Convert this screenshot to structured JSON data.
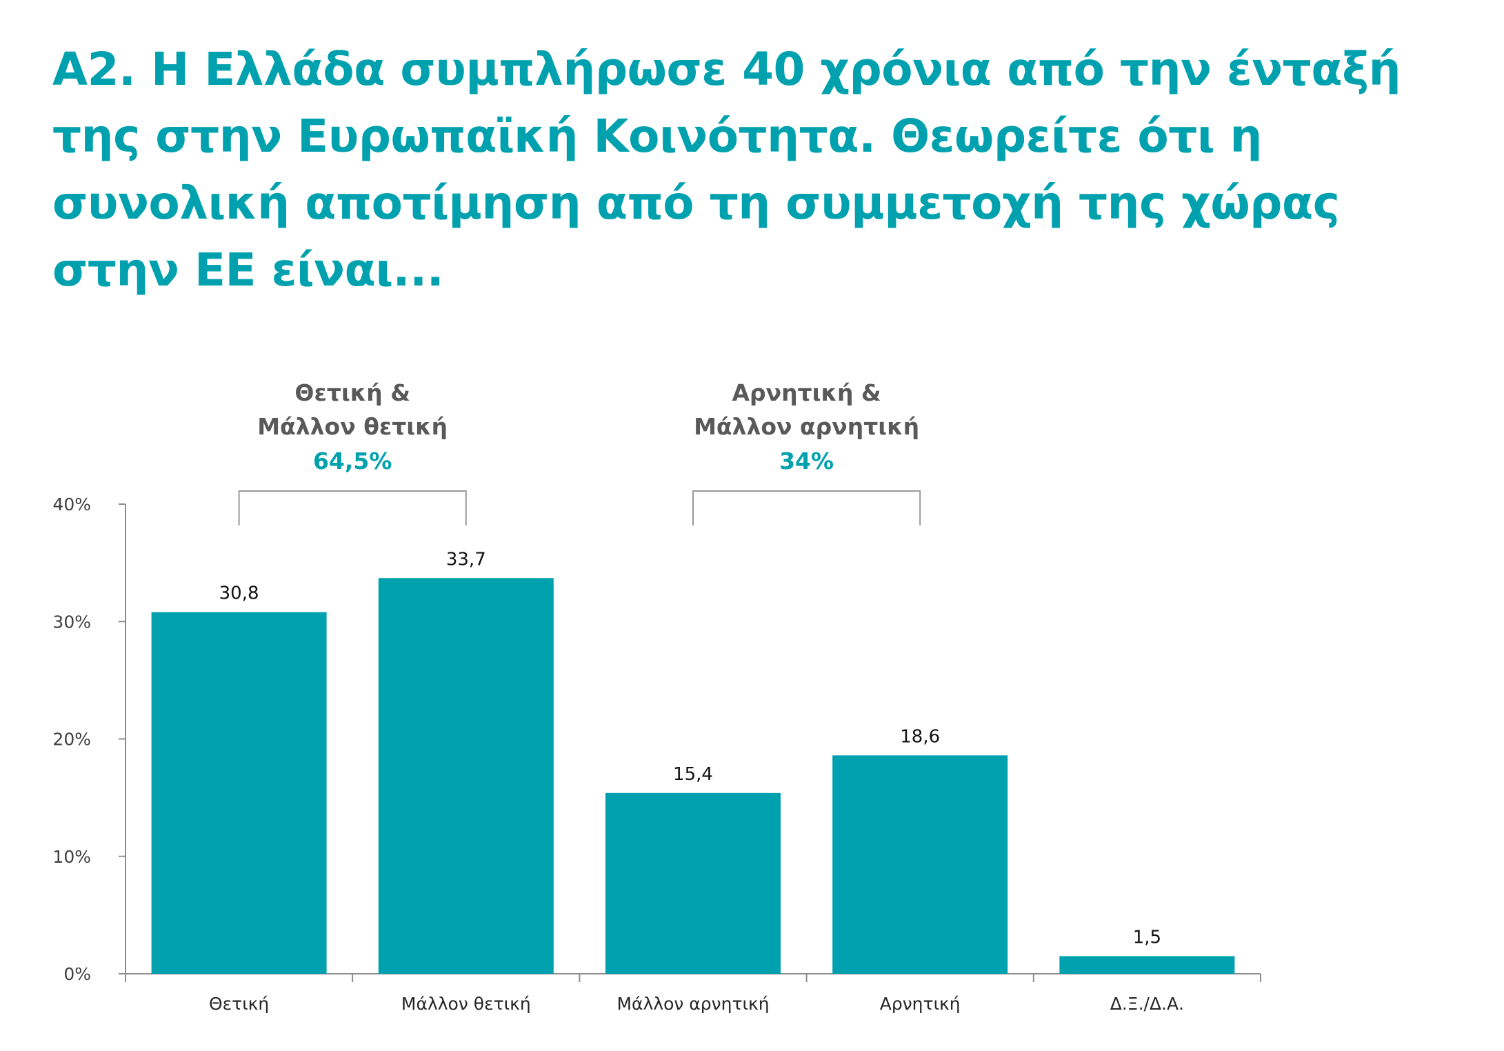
{
  "title": "Α2. Η Ελλάδα συμπλήρωσε 40 χρόνια από την ένταξή της στην Ευρωπαϊκή Κοινότητα. Θεωρείτε ότι η συνολική αποτίμηση από τη συμμετοχή της χώρας στην ΕΕ είναι...",
  "colors": {
    "accent": "#00a1ae",
    "group_title": "#595959",
    "axis": "#8c8c8c"
  },
  "chart_data": {
    "type": "bar",
    "title": "",
    "xlabel": "",
    "ylabel": "",
    "categories": [
      "Θετική",
      "Μάλλον θετική",
      "Μάλλον αρνητική",
      "Αρνητική",
      "Δ.Ξ./Δ.Α."
    ],
    "values": [
      30.8,
      33.7,
      15.4,
      18.6,
      1.5
    ],
    "value_labels": [
      "30,8",
      "33,7",
      "15,4",
      "18,6",
      "1,5"
    ],
    "ylim": [
      0,
      40
    ],
    "yticks": [
      0,
      10,
      20,
      30,
      40
    ],
    "ytick_labels": [
      "0%",
      "10%",
      "20%",
      "30%",
      "40%"
    ],
    "grid": false,
    "legend": "none",
    "groups": [
      {
        "title_line1": "Θετική &",
        "title_line2": "Μάλλον θετική",
        "total": "64,5%",
        "categories": [
          0,
          1
        ]
      },
      {
        "title_line1": "Αρνητική &",
        "title_line2": "Μάλλον αρνητική",
        "total": "34%",
        "categories": [
          2,
          3
        ]
      }
    ]
  }
}
